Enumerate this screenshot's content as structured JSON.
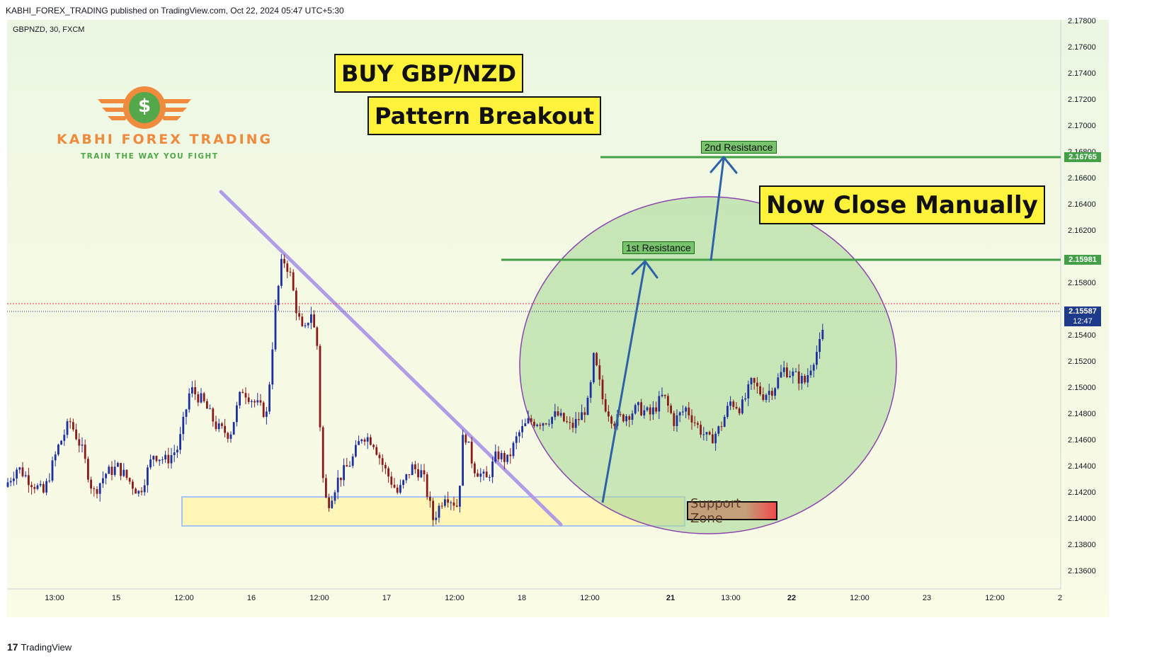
{
  "header": {
    "publisher_text": "KABHI_FOREX_TRADING published on TradingView.com, Oct 22, 2024 05:47 UTC+5:30",
    "symbol_text": "GBPNZD, 30, FXCM"
  },
  "footer": {
    "brand": "TradingView",
    "logo_glyph": "17"
  },
  "logo": {
    "title": "KABHI FOREX TRADING",
    "subtitle": "TRAIN THE WAY YOU FIGHT",
    "glyph": "$"
  },
  "annotations": {
    "buy": "BUY GBP/NZD",
    "pattern": "Pattern Breakout",
    "close": "Now Close Manually",
    "res1": "1st Resistance",
    "res2": "2nd Resistance",
    "support": "Support Zone"
  },
  "price_tags": {
    "res2": "2.16765",
    "res1": "2.15981",
    "current": "2.15587",
    "countdown": "12:47"
  },
  "colors": {
    "up": "#1e2fa0",
    "down": "#8b1a1a",
    "resistance": "#43a047",
    "trendline": "#b19ce6",
    "ellipse_fill": "#a8d89a",
    "ellipse_stroke": "#8e44ad",
    "support_fill": "#fff6b8",
    "support_stroke": "#a7c4f2",
    "arrow": "#2e62a8",
    "current_price": "#1e3a8a",
    "red_dotted": "#f23645"
  },
  "chart_data": {
    "type": "candlestick",
    "symbol": "GBPNZD",
    "timeframe": "30",
    "source": "FXCM",
    "y_axis": {
      "ylim": [
        2.135,
        2.1785
      ],
      "ticks": [
        "2.17800",
        "2.17600",
        "2.17400",
        "2.17200",
        "2.17000",
        "2.16800",
        "2.16600",
        "2.16400",
        "2.16200",
        "2.15800",
        "2.15400",
        "2.15200",
        "2.15000",
        "2.14800",
        "2.14600",
        "2.14400",
        "2.14200",
        "2.14000",
        "2.13800",
        "2.13600"
      ]
    },
    "x_axis": {
      "ticks": [
        "13:00",
        "15",
        "12:00",
        "16",
        "12:00",
        "17",
        "12:00",
        "18",
        "12:00",
        "21",
        "13:00",
        "22",
        "12:00",
        "23",
        "12:00",
        "2"
      ],
      "bold": [
        false,
        false,
        false,
        false,
        false,
        false,
        false,
        false,
        false,
        true,
        false,
        true,
        false,
        false,
        false,
        false
      ]
    },
    "horizontal_levels": [
      {
        "name": "2nd Resistance",
        "value": 2.16765
      },
      {
        "name": "1st Resistance",
        "value": 2.15981
      }
    ],
    "current_price": 2.15587,
    "support_zone": [
      2.1396,
      2.1418
    ],
    "price_path": [
      [
        0,
        2.1425
      ],
      [
        18,
        2.144
      ],
      [
        35,
        2.143
      ],
      [
        55,
        2.142
      ],
      [
        75,
        2.1455
      ],
      [
        92,
        2.1475
      ],
      [
        108,
        2.1455
      ],
      [
        125,
        2.142
      ],
      [
        142,
        2.1435
      ],
      [
        160,
        2.144
      ],
      [
        175,
        2.143
      ],
      [
        190,
        2.142
      ],
      [
        210,
        2.145
      ],
      [
        228,
        2.1445
      ],
      [
        245,
        2.1455
      ],
      [
        262,
        2.15
      ],
      [
        280,
        2.149
      ],
      [
        300,
        2.147
      ],
      [
        318,
        2.1465
      ],
      [
        335,
        2.15
      ],
      [
        352,
        2.149
      ],
      [
        370,
        2.148
      ],
      [
        382,
        2.156
      ],
      [
        392,
        2.16
      ],
      [
        402,
        2.159
      ],
      [
        412,
        2.156
      ],
      [
        422,
        2.154
      ],
      [
        432,
        2.156
      ],
      [
        442,
        2.153
      ],
      [
        447,
        2.144
      ],
      [
        455,
        2.141
      ],
      [
        470,
        2.143
      ],
      [
        490,
        2.1445
      ],
      [
        505,
        2.1465
      ],
      [
        520,
        2.146
      ],
      [
        535,
        2.144
      ],
      [
        555,
        2.142
      ],
      [
        575,
        2.144
      ],
      [
        590,
        2.1435
      ],
      [
        605,
        2.14
      ],
      [
        622,
        2.142
      ],
      [
        640,
        2.141
      ],
      [
        648,
        2.147
      ],
      [
        662,
        2.144
      ],
      [
        680,
        2.143
      ],
      [
        695,
        2.145
      ],
      [
        710,
        2.1445
      ],
      [
        725,
        2.1465
      ],
      [
        740,
        2.1475
      ],
      [
        760,
        2.1475
      ],
      [
        780,
        2.148
      ],
      [
        800,
        2.147
      ],
      [
        815,
        2.148
      ],
      [
        825,
        2.149
      ],
      [
        832,
        2.1525
      ],
      [
        845,
        2.149
      ],
      [
        860,
        2.1475
      ],
      [
        878,
        2.148
      ],
      [
        895,
        2.1485
      ],
      [
        912,
        2.148
      ],
      [
        930,
        2.1495
      ],
      [
        945,
        2.1475
      ],
      [
        962,
        2.1485
      ],
      [
        980,
        2.147
      ],
      [
        995,
        2.146
      ],
      [
        1010,
        2.147
      ],
      [
        1025,
        2.149
      ],
      [
        1040,
        2.1485
      ],
      [
        1055,
        2.1505
      ],
      [
        1070,
        2.1495
      ],
      [
        1085,
        2.15
      ],
      [
        1100,
        2.1515
      ],
      [
        1115,
        2.151
      ],
      [
        1130,
        2.1505
      ],
      [
        1140,
        2.152
      ],
      [
        1152,
        2.1535
      ],
      [
        1163,
        2.156
      ]
    ]
  }
}
